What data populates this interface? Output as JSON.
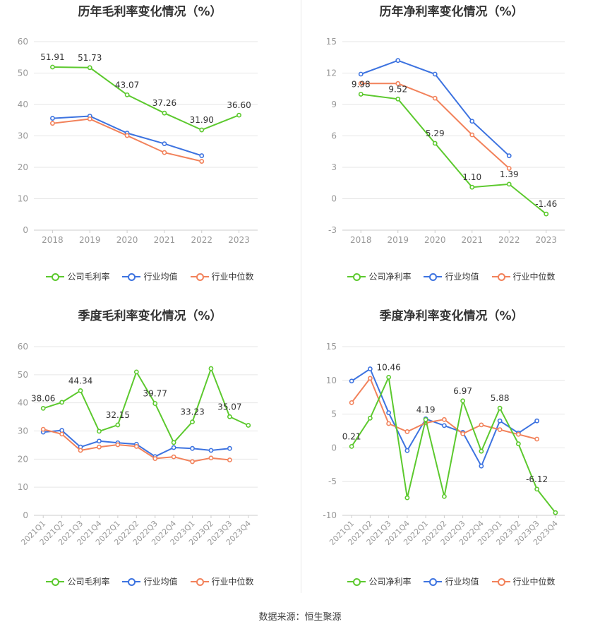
{
  "colors": {
    "company": "#5cc92e",
    "avg": "#3d73e0",
    "median": "#f2825b",
    "grid": "#e6e6e6",
    "axis": "#999999"
  },
  "legend_gross": {
    "company": "公司毛利率",
    "avg": "行业均值",
    "median": "行业中位数"
  },
  "legend_net": {
    "company": "公司净利率",
    "avg": "行业均值",
    "median": "行业中位数"
  },
  "source": "数据来源：恒生聚源",
  "chart_data": [
    {
      "type": "line",
      "title": "历年毛利率变化情况（%）",
      "categories": [
        "2018",
        "2019",
        "2020",
        "2021",
        "2022",
        "2023"
      ],
      "ylim": [
        0,
        60
      ],
      "yticks": [
        "0",
        "10",
        "20",
        "30",
        "40",
        "50",
        "60"
      ],
      "series": [
        {
          "name": "公司毛利率",
          "key": "company",
          "values": [
            51.91,
            51.73,
            43.07,
            37.26,
            31.9,
            36.6
          ],
          "labels": [
            "51.91",
            "51.73",
            "43.07",
            "37.26",
            "31.90",
            "36.60"
          ]
        },
        {
          "name": "行业均值",
          "key": "avg",
          "values": [
            35.6,
            36.3,
            30.9,
            27.5,
            23.7,
            null
          ]
        },
        {
          "name": "行业中位数",
          "key": "median",
          "values": [
            34.0,
            35.4,
            30.1,
            24.7,
            21.9,
            null
          ]
        }
      ],
      "legend": "bottom"
    },
    {
      "type": "line",
      "title": "历年净利率变化情况（%）",
      "categories": [
        "2018",
        "2019",
        "2020",
        "2021",
        "2022",
        "2023"
      ],
      "ylim": [
        -3,
        15
      ],
      "yticks": [
        "-3",
        "0",
        "3",
        "6",
        "9",
        "12",
        "15"
      ],
      "series": [
        {
          "name": "公司净利率",
          "key": "company",
          "values": [
            9.98,
            9.52,
            5.29,
            1.1,
            1.39,
            -1.46
          ],
          "labels": [
            "9.98",
            "9.52",
            "5.29",
            "1.10",
            "1.39",
            "-1.46"
          ]
        },
        {
          "name": "行业均值",
          "key": "avg",
          "values": [
            11.9,
            13.2,
            11.9,
            7.4,
            4.1,
            null
          ]
        },
        {
          "name": "行业中位数",
          "key": "median",
          "values": [
            11.0,
            11.0,
            9.6,
            6.1,
            2.9,
            null
          ]
        }
      ],
      "legend": "bottom"
    },
    {
      "type": "line",
      "title": "季度毛利率变化情况（%）",
      "categories": [
        "2021Q1",
        "2021Q2",
        "2021Q3",
        "2021Q4",
        "2022Q1",
        "2022Q2",
        "2022Q3",
        "2022Q4",
        "2023Q1",
        "2023Q2",
        "2023Q3",
        "2023Q4"
      ],
      "ylim": [
        0,
        60
      ],
      "yticks": [
        "0",
        "10",
        "20",
        "30",
        "40",
        "50",
        "60"
      ],
      "series": [
        {
          "name": "公司毛利率",
          "key": "company",
          "values": [
            38.06,
            40.2,
            44.34,
            29.9,
            32.15,
            51.0,
            39.77,
            25.9,
            33.23,
            52.2,
            35.07,
            32.0
          ],
          "labels": [
            "38.06",
            "",
            "44.34",
            "",
            "32.15",
            "",
            "39.77",
            "",
            "33.23",
            "",
            "35.07",
            ""
          ]
        },
        {
          "name": "行业均值",
          "key": "avg",
          "values": [
            29.6,
            30.2,
            24.3,
            26.4,
            25.8,
            25.3,
            20.9,
            24.1,
            23.8,
            23.1,
            23.8,
            null
          ]
        },
        {
          "name": "行业中位数",
          "key": "median",
          "values": [
            30.6,
            28.9,
            23.1,
            24.3,
            25.1,
            24.5,
            20.2,
            20.8,
            19.1,
            20.4,
            19.7,
            null
          ]
        }
      ],
      "legend": "bottom"
    },
    {
      "type": "line",
      "title": "季度净利率变化情况（%）",
      "categories": [
        "2021Q1",
        "2021Q2",
        "2021Q3",
        "2021Q4",
        "2022Q1",
        "2022Q2",
        "2022Q3",
        "2022Q4",
        "2023Q1",
        "2023Q2",
        "2023Q3",
        "2023Q4"
      ],
      "ylim": [
        -10,
        15
      ],
      "yticks": [
        "-10",
        "-5",
        "0",
        "5",
        "10",
        "15"
      ],
      "series": [
        {
          "name": "公司净利率",
          "key": "company",
          "values": [
            0.21,
            4.4,
            10.46,
            -7.4,
            4.19,
            -7.2,
            6.97,
            -0.5,
            5.88,
            0.6,
            -6.12,
            -9.6
          ],
          "labels": [
            "0.21",
            "",
            "10.46",
            "",
            "4.19",
            "",
            "6.97",
            "",
            "5.88",
            "",
            "-6.12",
            ""
          ]
        },
        {
          "name": "行业均值",
          "key": "avg",
          "values": [
            9.9,
            11.7,
            5.2,
            -0.4,
            4.3,
            3.3,
            2.3,
            -2.7,
            4.0,
            2.2,
            4.0,
            null
          ]
        },
        {
          "name": "行业中位数",
          "key": "median",
          "values": [
            6.7,
            10.3,
            3.6,
            2.4,
            3.7,
            4.2,
            2.1,
            3.4,
            2.7,
            2.0,
            1.3,
            null
          ]
        }
      ],
      "legend": "bottom"
    }
  ]
}
